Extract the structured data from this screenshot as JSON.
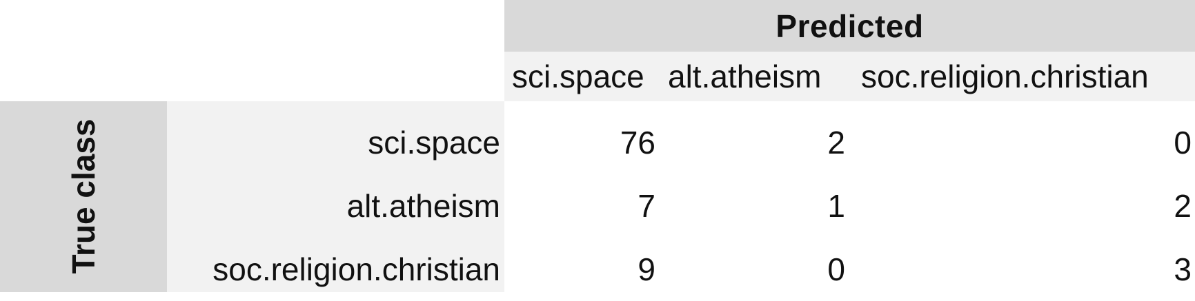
{
  "chart_data": {
    "type": "table",
    "title": "",
    "col_axis_label": "Predicted",
    "row_axis_label": "True class",
    "columns": [
      "sci.space",
      "alt.atheism",
      "soc.religion.christian"
    ],
    "rows": [
      "sci.space",
      "alt.atheism",
      "soc.religion.christian"
    ],
    "values": [
      [
        76,
        2,
        0
      ],
      [
        7,
        1,
        2
      ],
      [
        9,
        0,
        3
      ]
    ]
  },
  "colors": {
    "header_band": "#d9d9d9",
    "label_band": "#f2f2f2",
    "text": "#111111"
  }
}
